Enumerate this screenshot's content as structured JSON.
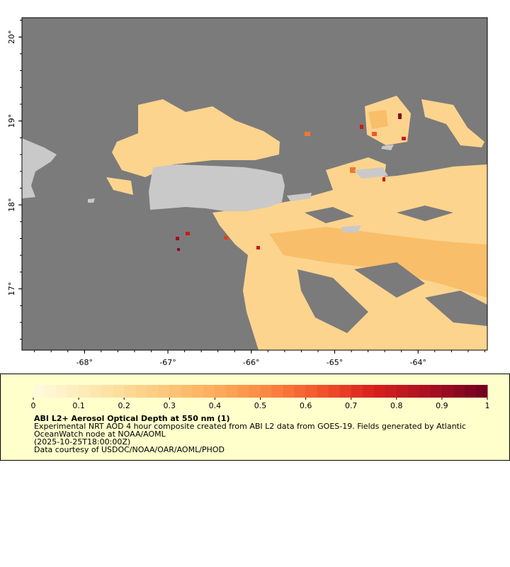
{
  "map": {
    "lonlim": [
      -68.75,
      -63.17
    ],
    "latlim": [
      16.27,
      20.23
    ],
    "lon_ticks": [
      {
        "value": -68,
        "label": "-68°"
      },
      {
        "value": -67,
        "label": "-67°"
      },
      {
        "value": -66,
        "label": "-66°"
      },
      {
        "value": -65,
        "label": "-65°"
      },
      {
        "value": -64,
        "label": "-64°"
      }
    ],
    "lat_ticks": [
      {
        "value": 17,
        "label": "17°"
      },
      {
        "value": 18,
        "label": "18°"
      },
      {
        "value": 19,
        "label": "19°"
      },
      {
        "value": 20,
        "label": "20°"
      }
    ]
  },
  "colorbar": {
    "range": [
      0,
      1
    ],
    "steps": 40,
    "colors": [
      "#fffbe0",
      "#fee9b2",
      "#fdd088",
      "#fdb462",
      "#fc8d46",
      "#f4572e",
      "#d9201e",
      "#a80f22",
      "#6e0020"
    ],
    "ticks": [
      0,
      0.1,
      0.2,
      0.3,
      0.4,
      0.5,
      0.6,
      0.7,
      0.8,
      0.9,
      1
    ]
  },
  "caption": {
    "title": "ABI L2+ Aerosol Optical Depth at 550 nm (1)",
    "lines": [
      "Experimental NRT AOD 4 hour composite created from ABI L2 data from GOES-19. Fields generated by Atlantic",
      "OceanWatch node at NOAA/AOML",
      "(2025-10-25T18:00:00Z)",
      "Data courtesy of USDOC/NOAA/OAR/AOML/PHOD"
    ]
  }
}
